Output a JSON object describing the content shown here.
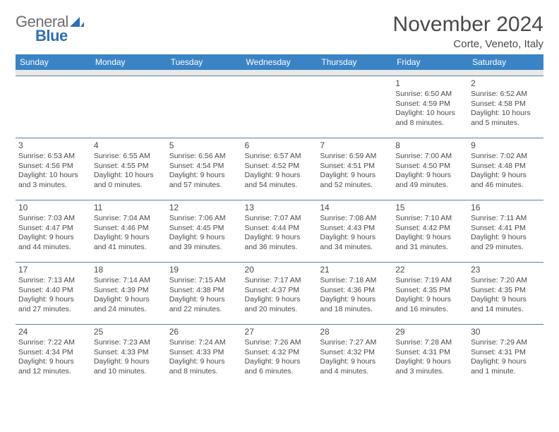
{
  "logo": {
    "text1": "General",
    "text2": "Blue"
  },
  "title": "November 2024",
  "location": "Corte, Veneto, Italy",
  "colors": {
    "header_bg": "#3a84c6",
    "header_text": "#ffffff",
    "cell_border": "#5c7fa0",
    "sep_bg": "#e9e9e9",
    "body_text": "#4a4a4a",
    "logo_gray": "#6e6e6e",
    "logo_blue": "#2f6fb3"
  },
  "weekdays": [
    "Sunday",
    "Monday",
    "Tuesday",
    "Wednesday",
    "Thursday",
    "Friday",
    "Saturday"
  ],
  "weeks": [
    [
      null,
      null,
      null,
      null,
      null,
      {
        "d": "1",
        "sr": "Sunrise: 6:50 AM",
        "ss": "Sunset: 4:59 PM",
        "dl": "Daylight: 10 hours and 8 minutes."
      },
      {
        "d": "2",
        "sr": "Sunrise: 6:52 AM",
        "ss": "Sunset: 4:58 PM",
        "dl": "Daylight: 10 hours and 5 minutes."
      }
    ],
    [
      {
        "d": "3",
        "sr": "Sunrise: 6:53 AM",
        "ss": "Sunset: 4:56 PM",
        "dl": "Daylight: 10 hours and 3 minutes."
      },
      {
        "d": "4",
        "sr": "Sunrise: 6:55 AM",
        "ss": "Sunset: 4:55 PM",
        "dl": "Daylight: 10 hours and 0 minutes."
      },
      {
        "d": "5",
        "sr": "Sunrise: 6:56 AM",
        "ss": "Sunset: 4:54 PM",
        "dl": "Daylight: 9 hours and 57 minutes."
      },
      {
        "d": "6",
        "sr": "Sunrise: 6:57 AM",
        "ss": "Sunset: 4:52 PM",
        "dl": "Daylight: 9 hours and 54 minutes."
      },
      {
        "d": "7",
        "sr": "Sunrise: 6:59 AM",
        "ss": "Sunset: 4:51 PM",
        "dl": "Daylight: 9 hours and 52 minutes."
      },
      {
        "d": "8",
        "sr": "Sunrise: 7:00 AM",
        "ss": "Sunset: 4:50 PM",
        "dl": "Daylight: 9 hours and 49 minutes."
      },
      {
        "d": "9",
        "sr": "Sunrise: 7:02 AM",
        "ss": "Sunset: 4:48 PM",
        "dl": "Daylight: 9 hours and 46 minutes."
      }
    ],
    [
      {
        "d": "10",
        "sr": "Sunrise: 7:03 AM",
        "ss": "Sunset: 4:47 PM",
        "dl": "Daylight: 9 hours and 44 minutes."
      },
      {
        "d": "11",
        "sr": "Sunrise: 7:04 AM",
        "ss": "Sunset: 4:46 PM",
        "dl": "Daylight: 9 hours and 41 minutes."
      },
      {
        "d": "12",
        "sr": "Sunrise: 7:06 AM",
        "ss": "Sunset: 4:45 PM",
        "dl": "Daylight: 9 hours and 39 minutes."
      },
      {
        "d": "13",
        "sr": "Sunrise: 7:07 AM",
        "ss": "Sunset: 4:44 PM",
        "dl": "Daylight: 9 hours and 36 minutes."
      },
      {
        "d": "14",
        "sr": "Sunrise: 7:08 AM",
        "ss": "Sunset: 4:43 PM",
        "dl": "Daylight: 9 hours and 34 minutes."
      },
      {
        "d": "15",
        "sr": "Sunrise: 7:10 AM",
        "ss": "Sunset: 4:42 PM",
        "dl": "Daylight: 9 hours and 31 minutes."
      },
      {
        "d": "16",
        "sr": "Sunrise: 7:11 AM",
        "ss": "Sunset: 4:41 PM",
        "dl": "Daylight: 9 hours and 29 minutes."
      }
    ],
    [
      {
        "d": "17",
        "sr": "Sunrise: 7:13 AM",
        "ss": "Sunset: 4:40 PM",
        "dl": "Daylight: 9 hours and 27 minutes."
      },
      {
        "d": "18",
        "sr": "Sunrise: 7:14 AM",
        "ss": "Sunset: 4:39 PM",
        "dl": "Daylight: 9 hours and 24 minutes."
      },
      {
        "d": "19",
        "sr": "Sunrise: 7:15 AM",
        "ss": "Sunset: 4:38 PM",
        "dl": "Daylight: 9 hours and 22 minutes."
      },
      {
        "d": "20",
        "sr": "Sunrise: 7:17 AM",
        "ss": "Sunset: 4:37 PM",
        "dl": "Daylight: 9 hours and 20 minutes."
      },
      {
        "d": "21",
        "sr": "Sunrise: 7:18 AM",
        "ss": "Sunset: 4:36 PM",
        "dl": "Daylight: 9 hours and 18 minutes."
      },
      {
        "d": "22",
        "sr": "Sunrise: 7:19 AM",
        "ss": "Sunset: 4:35 PM",
        "dl": "Daylight: 9 hours and 16 minutes."
      },
      {
        "d": "23",
        "sr": "Sunrise: 7:20 AM",
        "ss": "Sunset: 4:35 PM",
        "dl": "Daylight: 9 hours and 14 minutes."
      }
    ],
    [
      {
        "d": "24",
        "sr": "Sunrise: 7:22 AM",
        "ss": "Sunset: 4:34 PM",
        "dl": "Daylight: 9 hours and 12 minutes."
      },
      {
        "d": "25",
        "sr": "Sunrise: 7:23 AM",
        "ss": "Sunset: 4:33 PM",
        "dl": "Daylight: 9 hours and 10 minutes."
      },
      {
        "d": "26",
        "sr": "Sunrise: 7:24 AM",
        "ss": "Sunset: 4:33 PM",
        "dl": "Daylight: 9 hours and 8 minutes."
      },
      {
        "d": "27",
        "sr": "Sunrise: 7:26 AM",
        "ss": "Sunset: 4:32 PM",
        "dl": "Daylight: 9 hours and 6 minutes."
      },
      {
        "d": "28",
        "sr": "Sunrise: 7:27 AM",
        "ss": "Sunset: 4:32 PM",
        "dl": "Daylight: 9 hours and 4 minutes."
      },
      {
        "d": "29",
        "sr": "Sunrise: 7:28 AM",
        "ss": "Sunset: 4:31 PM",
        "dl": "Daylight: 9 hours and 3 minutes."
      },
      {
        "d": "30",
        "sr": "Sunrise: 7:29 AM",
        "ss": "Sunset: 4:31 PM",
        "dl": "Daylight: 9 hours and 1 minute."
      }
    ]
  ]
}
